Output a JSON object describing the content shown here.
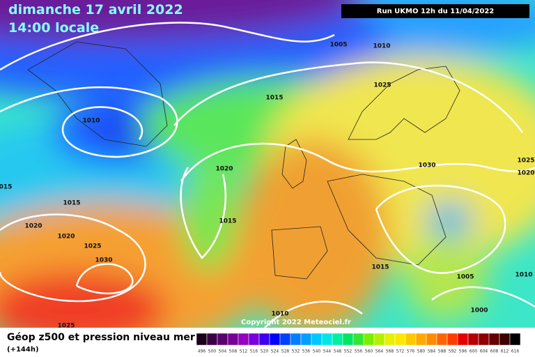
{
  "header": {
    "title": "dimanche 17 avril 2022",
    "time": "14:00 locale",
    "run": "Run UKMO 12h du 11/04/2022"
  },
  "isobar_labels": [
    "1005",
    "1010",
    "1025",
    "1015",
    "1010",
    "1020",
    "1030",
    "1025",
    "1020",
    "015",
    "1015",
    "1015",
    "1020",
    "1020",
    "1025",
    "1030",
    "1015",
    "1005",
    "1010",
    "1000",
    "1010",
    "1025"
  ],
  "copyright": "Copyright 2022 Meteociel.fr",
  "footer": {
    "title": "Géop z500 et pression niveau mer",
    "lead": "(+144h)"
  },
  "colorbar": {
    "labels": [
      496,
      500,
      504,
      508,
      512,
      516,
      520,
      524,
      528,
      532,
      536,
      540,
      544,
      548,
      552,
      556,
      560,
      564,
      568,
      572,
      576,
      580,
      584,
      588,
      592,
      596,
      600,
      604,
      608,
      612,
      616
    ],
    "colors": [
      "#1a001a",
      "#3c0046",
      "#5a006e",
      "#780096",
      "#9600be",
      "#7800dc",
      "#3c00f0",
      "#0000ff",
      "#0040ff",
      "#0080ff",
      "#00a0ff",
      "#00c8ff",
      "#00e6e6",
      "#00f0a0",
      "#00e664",
      "#32e632",
      "#78f000",
      "#b4f000",
      "#e6f000",
      "#ffe600",
      "#ffc800",
      "#ffaa00",
      "#ff8c00",
      "#ff6400",
      "#ff3c00",
      "#e60000",
      "#b40000",
      "#8c0000",
      "#640000",
      "#3c0000",
      "#000000"
    ]
  }
}
